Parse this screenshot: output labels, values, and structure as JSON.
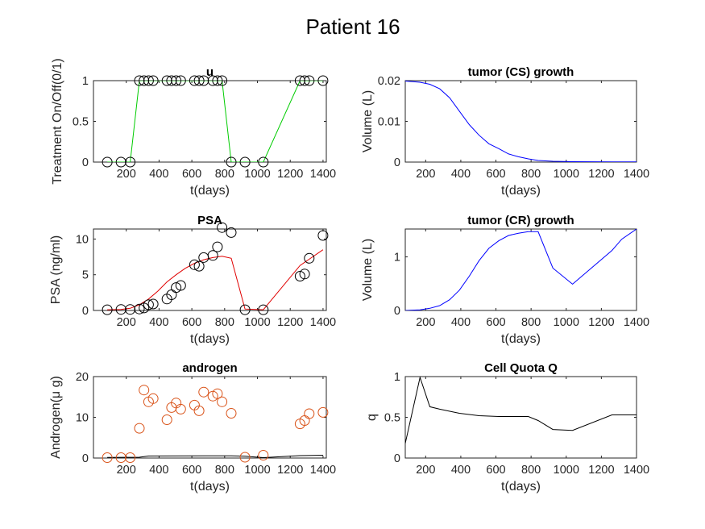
{
  "figure_title": "Patient 16",
  "chart_data": [
    {
      "id": "u",
      "type": "line",
      "title": "u",
      "xlabel": "t(days)",
      "ylabel": "Treatment On/Off(0/1)",
      "xlim": [
        0,
        1420
      ],
      "ylim": [
        0,
        1
      ],
      "xticks": [
        200,
        400,
        600,
        800,
        1000,
        1200,
        1400
      ],
      "yticks": [
        0,
        0.5,
        1
      ],
      "ytick_labels": [
        "0",
        "0.5",
        "1"
      ],
      "line_color": "#00cc00",
      "marker_color": "#000000",
      "x": [
        84,
        168,
        224,
        280,
        308,
        336,
        364,
        448,
        476,
        504,
        532,
        616,
        644,
        672,
        728,
        756,
        784,
        840,
        924,
        1036,
        1260,
        1288,
        1316,
        1400
      ],
      "line_y": [
        0,
        0,
        0,
        1,
        1,
        1,
        1,
        1,
        1,
        1,
        1,
        1,
        1,
        1,
        1,
        1,
        1,
        0,
        0,
        0,
        1,
        1,
        1,
        1
      ],
      "marker_y": [
        0,
        0,
        0,
        1,
        1,
        1,
        1,
        1,
        1,
        1,
        1,
        1,
        1,
        1,
        1,
        1,
        1,
        0,
        0,
        0,
        1,
        1,
        1,
        1
      ]
    },
    {
      "id": "cs",
      "type": "line",
      "title": "tumor (CS) growth",
      "xlabel": "t(days)",
      "ylabel": "Volume (L)",
      "xlim": [
        84,
        1400
      ],
      "ylim": [
        0,
        0.02
      ],
      "xticks": [
        200,
        400,
        600,
        800,
        1000,
        1200,
        1400
      ],
      "yticks": [
        0,
        0.01,
        0.02
      ],
      "ytick_labels": [
        "0",
        "0.01",
        "0.02"
      ],
      "line_color": "#0000ff",
      "x": [
        84,
        168,
        224,
        280,
        336,
        392,
        448,
        504,
        560,
        616,
        672,
        728,
        784,
        840,
        924,
        1036,
        1260,
        1400
      ],
      "line_y": [
        0.0199,
        0.0196,
        0.0191,
        0.018,
        0.0158,
        0.0125,
        0.0092,
        0.0066,
        0.0045,
        0.0033,
        0.002,
        0.0013,
        0.0008,
        0.0004,
        0.0002,
        0.0001,
        5e-05,
        3e-05
      ]
    },
    {
      "id": "psa",
      "type": "line",
      "title": "PSA",
      "xlabel": "t(days)",
      "ylabel": "PSA (ng/ml)",
      "xlim": [
        0,
        1420
      ],
      "ylim": [
        0,
        11.4
      ],
      "xticks": [
        200,
        400,
        600,
        800,
        1000,
        1200,
        1400
      ],
      "yticks": [
        0,
        5,
        10
      ],
      "ytick_labels": [
        "0",
        "5",
        "10"
      ],
      "line_color": "#e00000",
      "marker_color": "#000000",
      "line_x": [
        84,
        168,
        224,
        280,
        336,
        392,
        448,
        504,
        560,
        616,
        672,
        728,
        784,
        840,
        924,
        1036,
        1260,
        1400
      ],
      "line_y": [
        0.1,
        0.15,
        0.3,
        0.8,
        1.6,
        2.7,
        4.0,
        5.0,
        5.9,
        6.6,
        7.1,
        7.4,
        7.6,
        7.3,
        0.2,
        0.1,
        6.3,
        8.5
      ],
      "marker_x": [
        84,
        168,
        224,
        280,
        308,
        336,
        364,
        448,
        476,
        504,
        532,
        616,
        644,
        672,
        728,
        756,
        784,
        840,
        924,
        1036,
        1260,
        1288,
        1316,
        1400
      ],
      "marker_y": [
        0.1,
        0.15,
        0.15,
        0.2,
        0.35,
        0.8,
        0.9,
        1.6,
        2.2,
        3.2,
        3.5,
        6.4,
        6.2,
        7.4,
        7.7,
        8.9,
        11.6,
        10.9,
        0.1,
        0.1,
        4.8,
        5.1,
        7.3,
        10.5
      ]
    },
    {
      "id": "cr",
      "type": "line",
      "title": "tumor (CR) growth",
      "xlabel": "t(days)",
      "ylabel": "Volume (L)",
      "xlim": [
        84,
        1400
      ],
      "ylim": [
        0,
        1.52
      ],
      "xticks": [
        200,
        400,
        600,
        800,
        1000,
        1200,
        1400
      ],
      "yticks": [
        0,
        1
      ],
      "ytick_labels": [
        "0",
        "1"
      ],
      "line_color": "#0000ff",
      "x": [
        84,
        168,
        224,
        280,
        336,
        392,
        448,
        504,
        560,
        616,
        672,
        728,
        784,
        840,
        924,
        1036,
        1260,
        1316,
        1400
      ],
      "line_y": [
        0.0,
        0.01,
        0.04,
        0.09,
        0.2,
        0.38,
        0.64,
        0.93,
        1.16,
        1.3,
        1.4,
        1.44,
        1.47,
        1.47,
        0.79,
        0.49,
        1.12,
        1.33,
        1.52
      ]
    },
    {
      "id": "androgen",
      "type": "line",
      "title": "androgen",
      "xlabel": "t(days)",
      "ylabel": "Androgen(μ g)",
      "xlim": [
        0,
        1420
      ],
      "ylim": [
        0,
        20
      ],
      "xticks": [
        200,
        400,
        600,
        800,
        1000,
        1200,
        1400
      ],
      "yticks": [
        0,
        10,
        20
      ],
      "ytick_labels": [
        "0",
        "10",
        "20"
      ],
      "line_color": "#000000",
      "marker_color": "#d95319",
      "line_x": [
        84,
        280,
        336,
        840,
        924,
        1036,
        1260,
        1400
      ],
      "line_y": [
        0.15,
        0.2,
        0.5,
        0.55,
        0.45,
        0.1,
        0.6,
        0.7
      ],
      "marker_x": [
        84,
        168,
        224,
        280,
        308,
        336,
        364,
        448,
        476,
        504,
        532,
        616,
        644,
        672,
        728,
        756,
        784,
        840,
        924,
        1036,
        1260,
        1288,
        1316,
        1400
      ],
      "marker_y": [
        0.1,
        0.1,
        0.1,
        7.3,
        16.7,
        13.8,
        14.6,
        9.4,
        12.4,
        13.5,
        12.0,
        13.0,
        11.6,
        16.2,
        15.2,
        15.8,
        13.8,
        11.0,
        0.2,
        0.7,
        8.4,
        9.2,
        10.9,
        11.2
      ]
    },
    {
      "id": "quota",
      "type": "line",
      "title": "Cell Quota Q",
      "xlabel": "t(days)",
      "ylabel": "q",
      "xlim": [
        84,
        1400
      ],
      "ylim": [
        0,
        1
      ],
      "xticks": [
        200,
        400,
        600,
        800,
        1000,
        1200,
        1400
      ],
      "yticks": [
        0,
        0.5,
        1
      ],
      "ytick_labels": [
        "0",
        "0.5",
        "1"
      ],
      "line_color": "#000000",
      "x": [
        84,
        168,
        224,
        280,
        392,
        504,
        616,
        728,
        784,
        840,
        924,
        1036,
        1260,
        1400
      ],
      "line_y": [
        0.18,
        0.99,
        0.63,
        0.6,
        0.55,
        0.52,
        0.51,
        0.51,
        0.51,
        0.46,
        0.35,
        0.34,
        0.53,
        0.53
      ]
    }
  ]
}
